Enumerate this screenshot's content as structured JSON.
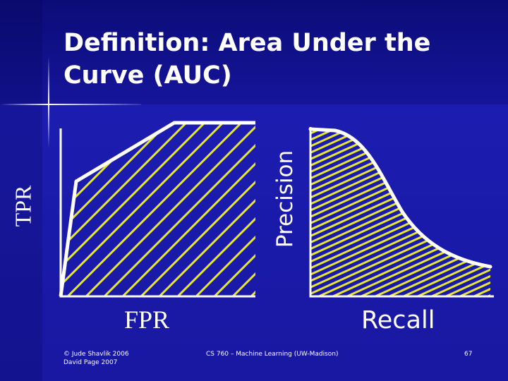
{
  "slide": {
    "title_line1": "Definition: Area Under the",
    "title_line2": "Curve (AUC)",
    "colors": {
      "background": "#1a1aa6",
      "text": "#ffffff",
      "hatch": "#e6e632",
      "curve": "#ffffff"
    }
  },
  "roc_plot": {
    "y_label": "TPR",
    "x_label": "FPR"
  },
  "pr_plot": {
    "y_label": "Precision",
    "x_label": "Recall"
  },
  "footer": {
    "copyright_line1": "© Jude Shavlik 2006",
    "copyright_line2": "David Page 2007",
    "course": "CS 760 – Machine Learning (UW-Madison)",
    "page_number": "67"
  }
}
